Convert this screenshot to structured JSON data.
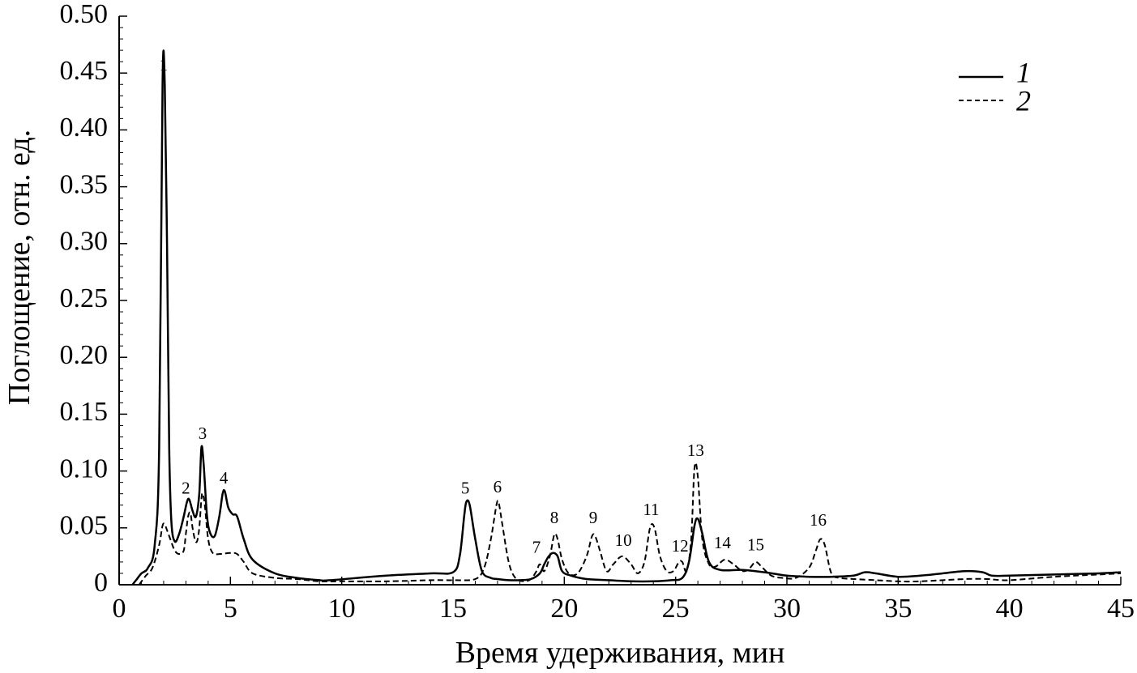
{
  "chart_data": {
    "type": "line",
    "title": "",
    "xlabel": "Время удерживания, мин",
    "ylabel": "Поглощение, отн. ед.",
    "xlim": [
      0,
      45
    ],
    "ylim": [
      0,
      0.5
    ],
    "xticks": [
      0,
      5,
      10,
      15,
      20,
      25,
      30,
      35,
      40,
      45
    ],
    "xtick_labels": [
      "0",
      "5",
      "10",
      "15",
      "20",
      "25",
      "30",
      "35",
      "40",
      "45"
    ],
    "yticks": [
      0,
      0.05,
      0.1,
      0.15,
      0.2,
      0.25,
      0.3,
      0.35,
      0.4,
      0.45,
      0.5
    ],
    "ytick_labels": [
      "0",
      "0.05",
      "0.10",
      "0.15",
      "0.20",
      "0.25",
      "0.30",
      "0.35",
      "0.40",
      "0.45",
      "0.50"
    ],
    "grid": false,
    "legend": {
      "position": "top-right",
      "entries": [
        {
          "label": "1",
          "style": "solid"
        },
        {
          "label": "2",
          "style": "dashed"
        }
      ]
    },
    "series": [
      {
        "style": "solid",
        "x": [
          0.6,
          0.8,
          1.0,
          1.3,
          1.6,
          1.8,
          1.95,
          2.05,
          2.15,
          2.25,
          2.35,
          2.5,
          2.7,
          2.9,
          3.05,
          3.15,
          3.3,
          3.45,
          3.6,
          3.7,
          3.8,
          3.95,
          4.1,
          4.3,
          4.5,
          4.65,
          4.75,
          4.9,
          5.1,
          5.3,
          5.6,
          6.0,
          7.0,
          8.0,
          9.0,
          9.5,
          12,
          14,
          15.0,
          15.3,
          15.5,
          15.6,
          15.75,
          16.0,
          16.3,
          16.7,
          17.0,
          17.5,
          18.0,
          18.5,
          18.9,
          19.1,
          19.3,
          19.5,
          19.7,
          19.9,
          20.3,
          21.0,
          22.0,
          23.0,
          24.0,
          24.8,
          25.3,
          25.6,
          25.85,
          26.0,
          26.2,
          26.5,
          27.0,
          28.0,
          29.0,
          30.0,
          31.0,
          32.0,
          33.0,
          33.5,
          34.0,
          35.0,
          36.0,
          37.0,
          38.0,
          38.8,
          39.2,
          40.0,
          42.0,
          44.0,
          45.0
        ],
        "y": [
          0.0,
          0.005,
          0.01,
          0.015,
          0.035,
          0.12,
          0.44,
          0.44,
          0.3,
          0.12,
          0.055,
          0.038,
          0.045,
          0.06,
          0.073,
          0.075,
          0.065,
          0.06,
          0.08,
          0.121,
          0.105,
          0.06,
          0.045,
          0.043,
          0.06,
          0.08,
          0.082,
          0.068,
          0.062,
          0.06,
          0.04,
          0.022,
          0.01,
          0.006,
          0.004,
          0.004,
          0.008,
          0.01,
          0.011,
          0.025,
          0.06,
          0.073,
          0.07,
          0.04,
          0.012,
          0.006,
          0.005,
          0.004,
          0.004,
          0.005,
          0.01,
          0.018,
          0.025,
          0.028,
          0.025,
          0.012,
          0.008,
          0.005,
          0.004,
          0.003,
          0.003,
          0.004,
          0.006,
          0.02,
          0.052,
          0.058,
          0.045,
          0.02,
          0.013,
          0.013,
          0.011,
          0.008,
          0.007,
          0.007,
          0.008,
          0.011,
          0.01,
          0.007,
          0.008,
          0.01,
          0.012,
          0.011,
          0.008,
          0.008,
          0.009,
          0.01,
          0.011
        ]
      },
      {
        "style": "dashed",
        "x": [
          0.9,
          1.2,
          1.5,
          1.8,
          1.95,
          2.05,
          2.15,
          2.3,
          2.5,
          2.7,
          2.9,
          3.0,
          3.1,
          3.2,
          3.3,
          3.4,
          3.5,
          3.6,
          3.7,
          3.75,
          3.85,
          4.0,
          4.2,
          4.5,
          5.0,
          5.3,
          5.6,
          6.0,
          7.0,
          8.0,
          9.0,
          10.0,
          12.0,
          14.0,
          15.0,
          16.0,
          16.4,
          16.7,
          16.95,
          17.05,
          17.2,
          17.5,
          17.8,
          18.2,
          18.5,
          18.75,
          18.9,
          19.1,
          19.35,
          19.55,
          19.7,
          19.9,
          20.2,
          20.6,
          21.0,
          21.25,
          21.4,
          21.6,
          21.9,
          22.2,
          22.6,
          23.0,
          23.3,
          23.6,
          23.85,
          24.05,
          24.3,
          24.6,
          24.9,
          25.15,
          25.3,
          25.5,
          25.7,
          25.85,
          26.0,
          26.2,
          26.5,
          26.8,
          27.2,
          27.6,
          28.0,
          28.3,
          28.6,
          28.9,
          29.3,
          29.8,
          30.4,
          31.0,
          31.3,
          31.5,
          31.7,
          32.0,
          32.4,
          33.0,
          34.0,
          35.0,
          36.0,
          38.0,
          39.0,
          40.0,
          42.0,
          44.0,
          45.0
        ],
        "y": [
          0.0,
          0.008,
          0.015,
          0.035,
          0.052,
          0.053,
          0.048,
          0.04,
          0.03,
          0.027,
          0.03,
          0.045,
          0.06,
          0.063,
          0.05,
          0.04,
          0.038,
          0.05,
          0.076,
          0.08,
          0.07,
          0.04,
          0.028,
          0.027,
          0.028,
          0.027,
          0.02,
          0.01,
          0.006,
          0.005,
          0.003,
          0.003,
          0.003,
          0.004,
          0.004,
          0.005,
          0.015,
          0.04,
          0.07,
          0.072,
          0.055,
          0.02,
          0.006,
          0.003,
          0.005,
          0.012,
          0.018,
          0.012,
          0.025,
          0.044,
          0.04,
          0.022,
          0.01,
          0.01,
          0.025,
          0.043,
          0.042,
          0.03,
          0.012,
          0.018,
          0.025,
          0.018,
          0.01,
          0.02,
          0.05,
          0.05,
          0.025,
          0.012,
          0.012,
          0.02,
          0.02,
          0.012,
          0.04,
          0.103,
          0.095,
          0.04,
          0.018,
          0.016,
          0.022,
          0.018,
          0.012,
          0.014,
          0.02,
          0.015,
          0.008,
          0.006,
          0.006,
          0.015,
          0.03,
          0.04,
          0.035,
          0.01,
          0.006,
          0.005,
          0.004,
          0.003,
          0.003,
          0.005,
          0.005,
          0.004,
          0.007,
          0.009,
          0.01
        ]
      }
    ],
    "annotations": [
      {
        "text": "1",
        "x": 2.0,
        "y": 0.445
      },
      {
        "text": "2",
        "x": 3.0,
        "y": 0.073
      },
      {
        "text": "3",
        "x": 3.75,
        "y": 0.121
      },
      {
        "text": "4",
        "x": 4.7,
        "y": 0.082
      },
      {
        "text": "5",
        "x": 15.55,
        "y": 0.073
      },
      {
        "text": "6",
        "x": 17.0,
        "y": 0.074
      },
      {
        "text": "7",
        "x": 18.75,
        "y": 0.021
      },
      {
        "text": "8",
        "x": 19.55,
        "y": 0.047
      },
      {
        "text": "9",
        "x": 21.3,
        "y": 0.047
      },
      {
        "text": "10",
        "x": 22.65,
        "y": 0.027
      },
      {
        "text": "11",
        "x": 23.9,
        "y": 0.054
      },
      {
        "text": "12",
        "x": 25.2,
        "y": 0.022
      },
      {
        "text": "13",
        "x": 25.9,
        "y": 0.106
      },
      {
        "text": "14",
        "x": 27.1,
        "y": 0.025
      },
      {
        "text": "15",
        "x": 28.6,
        "y": 0.023
      },
      {
        "text": "16",
        "x": 31.4,
        "y": 0.045
      }
    ]
  }
}
